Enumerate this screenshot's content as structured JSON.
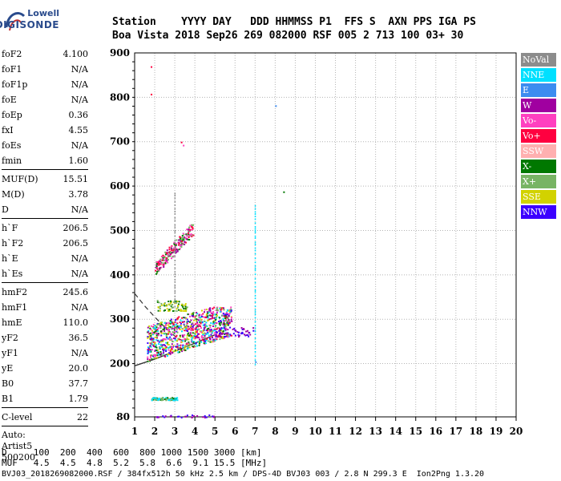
{
  "logo": {
    "top": "Lowell",
    "bottom": "DIGISONDE"
  },
  "header": {
    "row1": "Station    YYYY DAY   DDD HHMMSS P1  FFS S  AXN PPS IGA PS",
    "row2": "Boa Vista 2018 Sep26 269 082000 RSF 005 2 713 100 03+ 30"
  },
  "params": {
    "group1": [
      {
        "label": "foF2",
        "value": "4.100"
      },
      {
        "label": "foF1",
        "value": "N/A"
      },
      {
        "label": "foF1p",
        "value": "N/A"
      },
      {
        "label": "foE",
        "value": "N/A"
      },
      {
        "label": "foEp",
        "value": "0.36"
      },
      {
        "label": "fxI",
        "value": "4.55"
      },
      {
        "label": "foEs",
        "value": "N/A"
      },
      {
        "label": "fmin",
        "value": "1.60"
      }
    ],
    "group2": [
      {
        "label": "MUF(D)",
        "value": "15.51"
      },
      {
        "label": "M(D)",
        "value": "3.78"
      },
      {
        "label": "D",
        "value": "N/A"
      }
    ],
    "group3": [
      {
        "label": "h`F",
        "value": "206.5"
      },
      {
        "label": "h`F2",
        "value": "206.5"
      },
      {
        "label": "h`E",
        "value": "N/A"
      },
      {
        "label": "h`Es",
        "value": "N/A"
      }
    ],
    "group4": [
      {
        "label": "hmF2",
        "value": "245.6"
      },
      {
        "label": "hmF1",
        "value": "N/A"
      },
      {
        "label": "hmE",
        "value": "110.0"
      },
      {
        "label": "yF2",
        "value": "36.5"
      },
      {
        "label": "yF1",
        "value": "N/A"
      },
      {
        "label": "yE",
        "value": "20.0"
      },
      {
        "label": "B0",
        "value": "37.7"
      },
      {
        "label": "B1",
        "value": "1.79"
      }
    ],
    "group5": [
      {
        "label": "C-level",
        "value": "22"
      }
    ],
    "auto": [
      "Auto:",
      "Artist5",
      "500200"
    ]
  },
  "legend": [
    {
      "label": "NoVal",
      "color": "#8c8c8c"
    },
    {
      "label": "NNE",
      "color": "#00e0ff"
    },
    {
      "label": "E",
      "color": "#3c8cf0"
    },
    {
      "label": "W",
      "color": "#a000a0"
    },
    {
      "label": "Vo-",
      "color": "#ff40c0"
    },
    {
      "label": "Vo+",
      "color": "#ff0040"
    },
    {
      "label": "SSW",
      "color": "#ffb0b0"
    },
    {
      "label": "X-",
      "color": "#007800"
    },
    {
      "label": "X+",
      "color": "#78b464"
    },
    {
      "label": "SSE",
      "color": "#d2d200"
    },
    {
      "label": "NNW",
      "color": "#3c00ff"
    }
  ],
  "footer": {
    "d_row": "D     100  200  400  600  800 1000 1500 3000 [km]",
    "muf_row": "MUF   4.5  4.5  4.8  5.2  5.8  6.6  9.1 15.5 [MHz]",
    "info": "BVJ03_2018269082000.RSF / 384fx512h 50 kHz 2.5 km / DPS-4D BVJ03 003 / 2.8 N 299.3 E  Ion2Png 1.3.20"
  },
  "chart_data": {
    "type": "scatter",
    "xlim": [
      1,
      20
    ],
    "ylim": [
      80,
      900
    ],
    "xticks": [
      1,
      2,
      3,
      4,
      5,
      6,
      7,
      8,
      9,
      10,
      11,
      12,
      13,
      14,
      15,
      16,
      17,
      18,
      19,
      20
    ],
    "yticks": [
      80,
      200,
      300,
      400,
      500,
      600,
      700,
      800,
      900
    ],
    "grid": true,
    "legend_position": "right",
    "clusters": [
      {
        "name": "main-echoes",
        "x_range": [
          1.6,
          5.8
        ],
        "y_range": [
          205,
          330
        ],
        "count": 900,
        "colors": [
          "#ff0040",
          "#ff40c0",
          "#a000a0",
          "#3c00ff",
          "#007800",
          "#78b464",
          "#d2d200",
          "#00e0ff"
        ]
      },
      {
        "name": "second-hop",
        "x_range": [
          2.0,
          3.9
        ],
        "y_range": [
          415,
          515
        ],
        "count": 220,
        "colors": [
          "#ff0040",
          "#ff40c0",
          "#a000a0",
          "#007800",
          "#78b464"
        ]
      },
      {
        "name": "mid-band",
        "x_range": [
          2.1,
          3.6
        ],
        "y_range": [
          320,
          345
        ],
        "count": 80,
        "colors": [
          "#007800",
          "#78b464",
          "#d2d200"
        ]
      },
      {
        "name": "low-band",
        "x_range": [
          1.8,
          3.1
        ],
        "y_range": [
          119,
          125
        ],
        "count": 70,
        "colors": [
          "#007800",
          "#78b464",
          "#00e0ff"
        ]
      },
      {
        "name": "blue-tail",
        "x_range": [
          5.0,
          6.9
        ],
        "y_range": [
          262,
          285
        ],
        "count": 60,
        "colors": [
          "#3c00ff",
          "#a000a0"
        ]
      },
      {
        "name": "bottom-row",
        "x_range": [
          2.0,
          5.0
        ],
        "y_range": [
          80,
          86
        ],
        "count": 30,
        "colors": [
          "#3c00ff",
          "#a000a0"
        ]
      }
    ],
    "spikes": [
      {
        "x": 3.0,
        "y_range": [
          330,
          590
        ],
        "color": "#8c8c8c"
      },
      {
        "x": 7.0,
        "y_range": [
          200,
          560
        ],
        "color": "#00e0ff"
      }
    ],
    "isolated": [
      {
        "x": 1.8,
        "y": 870,
        "color": "#ff0040"
      },
      {
        "x": 1.8,
        "y": 808,
        "color": "#ff0040"
      },
      {
        "x": 3.3,
        "y": 700,
        "color": "#ff0040"
      },
      {
        "x": 3.4,
        "y": 693,
        "color": "#ff40c0"
      },
      {
        "x": 8.0,
        "y": 782,
        "color": "#3c8cf0"
      },
      {
        "x": 8.4,
        "y": 588,
        "color": "#007800"
      },
      {
        "x": 7.0,
        "y": 205,
        "color": "#3c8cf0"
      }
    ],
    "trace_lower": [
      [
        1.0,
        195
      ],
      [
        2.0,
        210
      ],
      [
        3.0,
        228
      ],
      [
        4.0,
        246
      ],
      [
        5.0,
        265
      ]
    ],
    "trace_upper": [
      [
        1.0,
        358
      ],
      [
        1.5,
        330
      ],
      [
        2.0,
        305
      ],
      [
        2.5,
        282
      ],
      [
        3.0,
        262
      ],
      [
        3.5,
        248
      ],
      [
        4.0,
        240
      ]
    ]
  }
}
